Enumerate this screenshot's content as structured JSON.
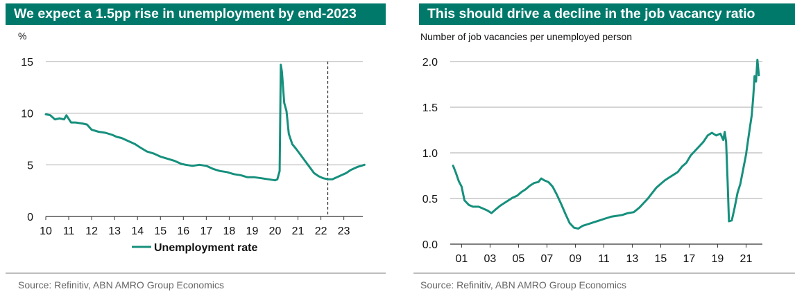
{
  "chart_data": [
    {
      "type": "line",
      "title": "We expect a 1.5pp rise in unemployment by end-2023",
      "unit_label": "%",
      "source": "Source: Refinitiv, ABN AMRO Group Economics",
      "x_ticks": [
        "10",
        "11",
        "12",
        "13",
        "14",
        "15",
        "16",
        "17",
        "18",
        "19",
        "20",
        "21",
        "22",
        "23"
      ],
      "y_ticks": [
        "0",
        "5",
        "10",
        "15"
      ],
      "xlim": [
        2010,
        2024.1
      ],
      "ylim": [
        0,
        15
      ],
      "grid": "horizontal",
      "legend": "bottom",
      "vline_x": 2022.3,
      "series": [
        {
          "name": "Unemployment rate",
          "color": "#16907d",
          "x": [
            2010.0,
            2010.2,
            2010.4,
            2010.6,
            2010.8,
            2010.9,
            2011.1,
            2011.3,
            2011.6,
            2011.8,
            2012.0,
            2012.3,
            2012.6,
            2012.9,
            2013.1,
            2013.3,
            2013.6,
            2013.9,
            2014.1,
            2014.4,
            2014.7,
            2015.0,
            2015.3,
            2015.6,
            2015.9,
            2016.1,
            2016.4,
            2016.7,
            2017.0,
            2017.3,
            2017.6,
            2017.9,
            2018.2,
            2018.5,
            2018.8,
            2019.1,
            2019.4,
            2019.7,
            2020.0,
            2020.1,
            2020.2,
            2020.25,
            2020.3,
            2020.4,
            2020.5,
            2020.6,
            2020.75,
            2020.9,
            2021.1,
            2021.3,
            2021.5,
            2021.7,
            2021.9,
            2022.1,
            2022.3,
            2022.5,
            2022.7,
            2022.9,
            2023.1,
            2023.3,
            2023.6,
            2023.9
          ],
          "y": [
            9.9,
            9.8,
            9.4,
            9.5,
            9.4,
            9.8,
            9.1,
            9.1,
            9.0,
            8.9,
            8.4,
            8.2,
            8.1,
            7.9,
            7.7,
            7.6,
            7.3,
            7.0,
            6.7,
            6.3,
            6.1,
            5.8,
            5.6,
            5.4,
            5.1,
            5.0,
            4.9,
            5.0,
            4.9,
            4.6,
            4.4,
            4.3,
            4.1,
            4.0,
            3.8,
            3.8,
            3.7,
            3.6,
            3.5,
            3.6,
            4.4,
            14.7,
            14.0,
            11.0,
            10.2,
            8.0,
            7.0,
            6.6,
            6.0,
            5.4,
            4.8,
            4.2,
            3.9,
            3.7,
            3.6,
            3.6,
            3.8,
            4.0,
            4.2,
            4.5,
            4.8,
            5.0
          ]
        }
      ]
    },
    {
      "type": "line",
      "title": "This should drive a decline in the job vacancy ratio",
      "unit_label": "Number of job vacancies per unemployed person",
      "source": "Source: Refinitiv, ABN AMRO Group Economics",
      "x_ticks": [
        "01",
        "03",
        "05",
        "07",
        "09",
        "11",
        "13",
        "15",
        "17",
        "19",
        "21"
      ],
      "y_ticks": [
        "0.0",
        "0.5",
        "1.0",
        "1.5",
        "2.0"
      ],
      "xlim": [
        2000.7,
        2022.6
      ],
      "ylim": [
        0,
        2.0
      ],
      "grid": "horizontal",
      "series": [
        {
          "color": "#16907d",
          "x": [
            2000.9,
            2001.1,
            2001.3,
            2001.5,
            2001.7,
            2002.0,
            2002.3,
            2002.7,
            2003.0,
            2003.3,
            2003.6,
            2003.9,
            2004.2,
            2004.5,
            2004.8,
            2005.1,
            2005.4,
            2005.7,
            2006.0,
            2006.3,
            2006.6,
            2006.9,
            2007.1,
            2007.3,
            2007.6,
            2007.9,
            2008.2,
            2008.5,
            2008.8,
            2009.1,
            2009.4,
            2009.7,
            2010.0,
            2010.4,
            2010.8,
            2011.2,
            2011.6,
            2012.0,
            2012.4,
            2012.8,
            2013.2,
            2013.6,
            2014.0,
            2014.3,
            2014.6,
            2014.9,
            2015.2,
            2015.5,
            2015.8,
            2016.1,
            2016.4,
            2016.7,
            2017.0,
            2017.3,
            2017.6,
            2017.9,
            2018.2,
            2018.5,
            2018.8,
            2019.1,
            2019.4,
            2019.7,
            2019.9,
            2020.0,
            2020.1,
            2020.2,
            2020.3,
            2020.5,
            2020.7,
            2020.9,
            2021.1,
            2021.3,
            2021.5,
            2021.7,
            2021.9,
            2022.0,
            2022.1,
            2022.2,
            2022.3,
            2022.4
          ],
          "y": [
            0.86,
            0.78,
            0.69,
            0.63,
            0.48,
            0.43,
            0.41,
            0.41,
            0.39,
            0.37,
            0.34,
            0.38,
            0.42,
            0.45,
            0.48,
            0.51,
            0.53,
            0.57,
            0.6,
            0.64,
            0.67,
            0.68,
            0.72,
            0.7,
            0.68,
            0.63,
            0.54,
            0.44,
            0.33,
            0.23,
            0.18,
            0.17,
            0.2,
            0.22,
            0.24,
            0.26,
            0.28,
            0.3,
            0.31,
            0.32,
            0.34,
            0.35,
            0.4,
            0.45,
            0.5,
            0.56,
            0.62,
            0.66,
            0.7,
            0.73,
            0.76,
            0.79,
            0.85,
            0.89,
            0.97,
            1.02,
            1.07,
            1.12,
            1.19,
            1.22,
            1.19,
            1.21,
            1.14,
            1.23,
            1.12,
            0.7,
            0.25,
            0.26,
            0.4,
            0.56,
            0.66,
            0.82,
            0.98,
            1.2,
            1.41,
            1.6,
            1.84,
            1.78,
            2.02,
            1.85
          ]
        }
      ]
    }
  ]
}
